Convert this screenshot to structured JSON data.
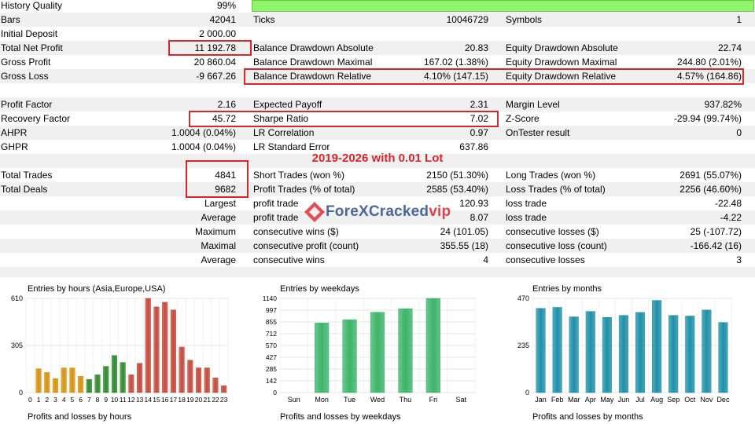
{
  "report": {
    "row0": {
      "history_quality_label": "History Quality",
      "history_quality_value": "99%"
    },
    "row1": {
      "bars_label": "Bars",
      "bars_value": "42041",
      "ticks_label": "Ticks",
      "ticks_value": "10046729",
      "symbols_label": "Symbols",
      "symbols_value": "1"
    },
    "row2": {
      "initial_deposit_label": "Initial Deposit",
      "initial_deposit_value": "2 000.00"
    },
    "row3": {
      "net_profit_label": "Total Net Profit",
      "net_profit_value": "11 192.78",
      "bal_dd_abs_label": "Balance Drawdown Absolute",
      "bal_dd_abs_value": "20.83",
      "eq_dd_abs_label": "Equity Drawdown Absolute",
      "eq_dd_abs_value": "22.74"
    },
    "row4": {
      "gross_profit_label": "Gross Profit",
      "gross_profit_value": "20 860.04",
      "bal_dd_max_label": "Balance Drawdown Maximal",
      "bal_dd_max_value": "167.02 (1.38%)",
      "eq_dd_max_label": "Equity Drawdown Maximal",
      "eq_dd_max_value": "244.80 (2.01%)"
    },
    "row5": {
      "gross_loss_label": "Gross Loss",
      "gross_loss_value": "-9 667.26",
      "bal_dd_rel_label": "Balance Drawdown Relative",
      "bal_dd_rel_value": "4.10% (147.15)",
      "eq_dd_rel_label": "Equity Drawdown Relative",
      "eq_dd_rel_value": "4.57% (164.86)"
    },
    "row7": {
      "profit_factor_label": "Profit Factor",
      "profit_factor_value": "2.16",
      "expected_payoff_label": "Expected Payoff",
      "expected_payoff_value": "2.31",
      "margin_level_label": "Margin Level",
      "margin_level_value": "937.82%"
    },
    "row8": {
      "recovery_factor_label": "Recovery Factor",
      "recovery_factor_value": "45.72",
      "sharpe_label": "Sharpe Ratio",
      "sharpe_value": "7.02",
      "zscore_label": "Z-Score",
      "zscore_value": "-29.94 (99.74%)"
    },
    "row9": {
      "ahpr_label": "AHPR",
      "ahpr_value": "1.0004 (0.04%)",
      "lr_corr_label": "LR Correlation",
      "lr_corr_value": "0.97",
      "ontester_label": "OnTester result",
      "ontester_value": "0"
    },
    "row10": {
      "ghpr_label": "GHPR",
      "ghpr_value": "1.0004 (0.04%)",
      "lr_se_label": "LR Standard Error",
      "lr_se_value": "637.86"
    },
    "row12": {
      "total_trades_label": "Total Trades",
      "total_trades_value": "4841",
      "short_label": "Short Trades (won %)",
      "short_value": "2150 (51.30%)",
      "long_label": "Long Trades (won %)",
      "long_value": "2691 (55.07%)"
    },
    "row13": {
      "total_deals_label": "Total Deals",
      "total_deals_value": "9682",
      "profit_trades_label": "Profit Trades (% of total)",
      "profit_trades_value": "2585 (53.40%)",
      "loss_trades_label": "Loss Trades (% of total)",
      "loss_trades_value": "2256 (46.60%)"
    },
    "row14": {
      "left": "Largest",
      "mid_label": "profit trade",
      "mid_value": "120.93",
      "right_label": "loss trade",
      "right_value": "-22.48"
    },
    "row15": {
      "left": "Average",
      "mid_label": "profit trade",
      "mid_value": "8.07",
      "right_label": "loss trade",
      "right_value": "-4.22"
    },
    "row16": {
      "left": "Maximum",
      "mid_label": "consecutive wins ($)",
      "mid_value": "24 (101.05)",
      "right_label": "consecutive losses ($)",
      "right_value": "25 (-107.72)"
    },
    "row17": {
      "left": "Maximal",
      "mid_label": "consecutive profit (count)",
      "mid_value": "355.55 (18)",
      "right_label": "consecutive loss (count)",
      "right_value": "-166.42 (16)"
    },
    "row18": {
      "left": "Average",
      "mid_label": "consecutive wins",
      "mid_value": "4",
      "right_label": "consecutive losses",
      "right_value": "3"
    }
  },
  "overlay": {
    "title": "2019-2026 with 0.01 Lot",
    "watermark_main": "ForeXCracked",
    "watermark_vip": "vip"
  },
  "colors": {
    "highlight_red": "#d9252c",
    "history_bar": "#8ef56a",
    "asia": "#d6920f",
    "europe": "#2e8b2e",
    "usa": "#c44a3c",
    "weekday": "#3cb46a",
    "month": "#1f8fa8"
  },
  "charts_footer": {
    "hours": "Profits and losses by hours",
    "weekdays": "Profits and losses by weekdays",
    "months": "Profits and losses by months"
  },
  "chart_data": [
    {
      "type": "bar",
      "title": "Entries by hours (Asia,Europe,USA)",
      "categories": [
        "0",
        "1",
        "2",
        "3",
        "4",
        "5",
        "6",
        "7",
        "8",
        "9",
        "10",
        "11",
        "12",
        "13",
        "14",
        "15",
        "16",
        "17",
        "18",
        "19",
        "20",
        "21",
        "22",
        "23"
      ],
      "series": [
        {
          "name": "Asia",
          "values": [
            0,
            155,
            130,
            90,
            160,
            160,
            105,
            0,
            0,
            0,
            0,
            0,
            0,
            0,
            0,
            0,
            0,
            0,
            0,
            0,
            0,
            0,
            0,
            0
          ]
        },
        {
          "name": "Europe",
          "values": [
            0,
            0,
            0,
            0,
            0,
            0,
            0,
            85,
            115,
            170,
            240,
            195,
            0,
            0,
            0,
            0,
            0,
            0,
            0,
            0,
            0,
            0,
            0,
            0
          ]
        },
        {
          "name": "USA",
          "values": [
            0,
            0,
            0,
            0,
            0,
            0,
            0,
            0,
            0,
            0,
            0,
            0,
            115,
            190,
            610,
            555,
            585,
            535,
            295,
            210,
            160,
            160,
            95,
            45
          ]
        }
      ],
      "yticks": [
        0,
        305,
        610
      ],
      "ylim": [
        0,
        610
      ]
    },
    {
      "type": "bar",
      "title": "Entries by weekdays",
      "categories": [
        "Sun",
        "Mon",
        "Tue",
        "Wed",
        "Thu",
        "Fri",
        "Sat"
      ],
      "values": [
        0,
        842,
        882,
        972,
        1015,
        1140,
        0
      ],
      "yticks": [
        0,
        142,
        285,
        427,
        570,
        712,
        855,
        997,
        1140
      ],
      "ylim": [
        0,
        1140
      ]
    },
    {
      "type": "bar",
      "title": "Entries by months",
      "categories": [
        "Jan",
        "Feb",
        "Mar",
        "Apr",
        "May",
        "Jun",
        "Jul",
        "Aug",
        "Sep",
        "Oct",
        "Nov",
        "Dec"
      ],
      "values": [
        420,
        425,
        378,
        405,
        375,
        385,
        400,
        460,
        385,
        382,
        412,
        350
      ],
      "yticks": [
        0,
        235,
        470
      ],
      "ylim": [
        0,
        470
      ]
    }
  ]
}
